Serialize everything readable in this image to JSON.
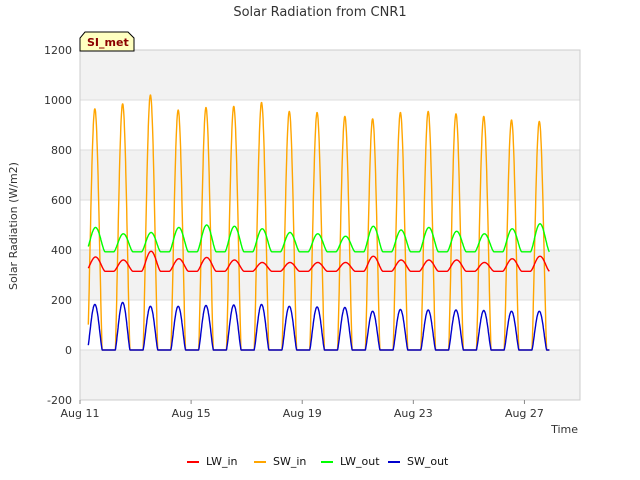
{
  "chart_data": {
    "type": "line",
    "title": "Solar Radiation from CNR1",
    "xlabel": "Time",
    "ylabel": "Solar Radiation (W/m2)",
    "badge": "SI_met",
    "x_range_days": [
      11,
      29
    ],
    "ylim": [
      -200,
      1200
    ],
    "yticks": [
      -200,
      0,
      200,
      400,
      600,
      800,
      1000,
      1200
    ],
    "xticks": [
      {
        "day": 11,
        "label": "Aug 11"
      },
      {
        "day": 15,
        "label": "Aug 15"
      },
      {
        "day": 19,
        "label": "Aug 19"
      },
      {
        "day": 23,
        "label": "Aug 23"
      },
      {
        "day": 27,
        "label": "Aug 27"
      }
    ],
    "grid": true,
    "legend_position": "bottom",
    "days": [
      11,
      12,
      13,
      14,
      15,
      16,
      17,
      18,
      19,
      20,
      21,
      22,
      23,
      24,
      25,
      26,
      27
    ],
    "series": [
      {
        "name": "LW_in",
        "color": "#ff0000",
        "night": 315,
        "peaks": [
          372,
          360,
          395,
          365,
          370,
          360,
          350,
          350,
          350,
          350,
          375,
          360,
          360,
          360,
          350,
          365,
          375
        ]
      },
      {
        "name": "SW_in",
        "color": "#ffa500",
        "night": 0,
        "peaks": [
          965,
          985,
          1020,
          960,
          970,
          975,
          990,
          955,
          950,
          935,
          925,
          950,
          955,
          945,
          935,
          920,
          915
        ]
      },
      {
        "name": "LW_out",
        "color": "#00ff00",
        "night": 393,
        "peaks": [
          490,
          465,
          470,
          490,
          500,
          495,
          485,
          470,
          465,
          455,
          495,
          480,
          490,
          475,
          465,
          485,
          505
        ]
      },
      {
        "name": "SW_out",
        "color": "#0000cd",
        "night": 0,
        "peaks": [
          182,
          190,
          175,
          175,
          178,
          180,
          182,
          175,
          172,
          170,
          155,
          162,
          160,
          160,
          158,
          155,
          155
        ]
      }
    ]
  }
}
